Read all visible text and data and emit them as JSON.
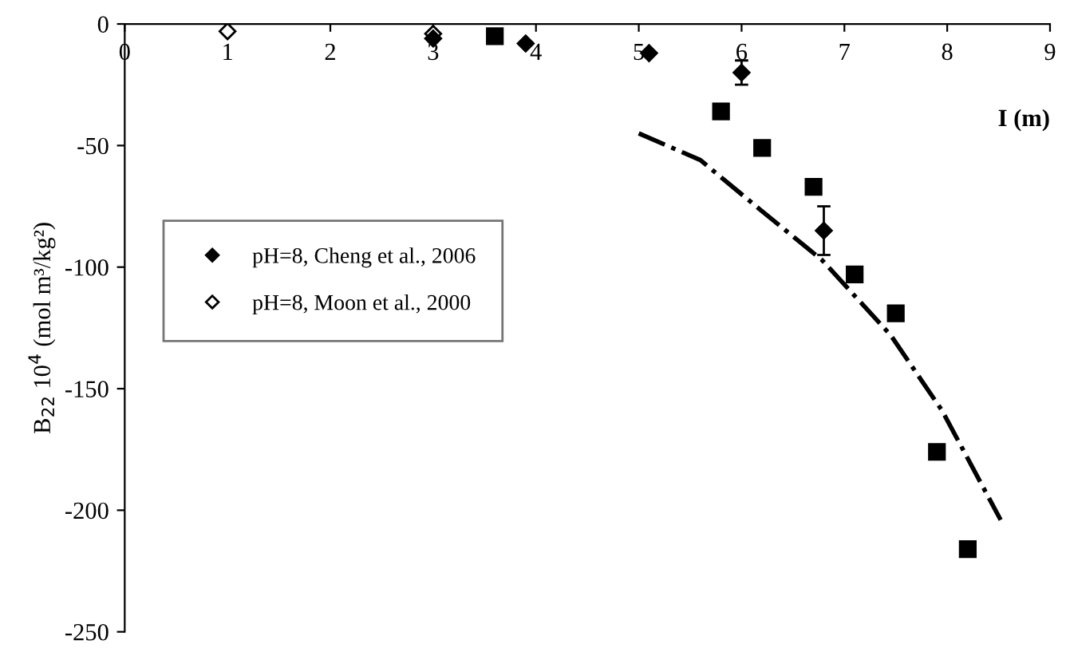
{
  "chart_data": {
    "type": "scatter",
    "xlabel": "I (m)",
    "ylabel": "B$_{22}$ 10$^{4}$ (mol m³/kg²)",
    "xlim": [
      0,
      9
    ],
    "xticks": [
      0,
      1,
      2,
      3,
      4,
      5,
      6,
      7,
      8,
      9
    ],
    "ylim": [
      -250,
      0
    ],
    "yticks": [
      0,
      -50,
      -100,
      -150,
      -200,
      -250
    ],
    "grid": false,
    "legend": "left",
    "series": [
      {
        "name": "pH=8, Cheng et al., 2006",
        "marker": "diamond",
        "color": "#000000",
        "x": [
          3,
          3.9,
          5.1,
          6,
          6.8
        ],
        "values": [
          -6,
          -8,
          -12,
          -20,
          -85
        ],
        "errors": [
          null,
          null,
          null,
          5,
          10
        ]
      },
      {
        "name": "pH=8, Moon et al., 2000",
        "marker": "diamond",
        "color": "#ffffff",
        "x": [
          1,
          3
        ],
        "values": [
          -3,
          -4
        ]
      },
      {
        "marker": "square",
        "color": "#000000",
        "x": [
          3.6,
          5.8,
          6.2,
          6.7,
          7.1,
          7.5,
          7.9,
          8.2
        ],
        "values": [
          -5,
          -36,
          -51,
          -67,
          -103,
          -119,
          -176,
          -216
        ]
      },
      {
        "type": "line",
        "line_style": "dashdot",
        "marker": "none",
        "color": "#000000",
        "x": [
          5.0,
          5.6,
          6.17,
          6.78,
          7.45,
          7.95,
          8.52
        ],
        "values": [
          -45,
          -56,
          -76,
          -97,
          -128,
          -159,
          -204
        ]
      }
    ]
  }
}
